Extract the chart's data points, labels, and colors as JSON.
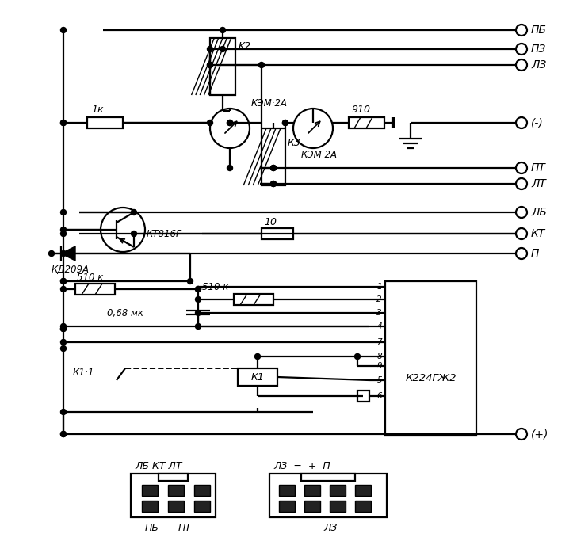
{
  "bg_color": "#ffffff",
  "labels": {
    "PB": "ПБ",
    "PZ": "ПЗ",
    "LZ": "ЛЗ",
    "minus": "(-)",
    "PT": "ПТ",
    "LT": "ЛТ",
    "LB": "ЛБ",
    "KT": "КТ",
    "P": "П",
    "plus": "(+)",
    "K2": "K2",
    "KEM2A_1": "КЭМ·2А",
    "KEM2A_2": "КЭМ·2А",
    "K3": "К3",
    "R910": "910",
    "R1K": "1к",
    "KT816G": "КТ816Г",
    "KD209A": "КД209А",
    "R510K_1": "510 к",
    "R510K_2": "510 к",
    "C068": "0,68 мк",
    "R10": "10",
    "K1": "К1",
    "K11": "К1:1",
    "K224GG2": "К224ГЖ2",
    "conn1_top": "ЛБ КТ ЛТ",
    "conn1_bot1": "ПБ",
    "conn1_bot2": "ПТ",
    "conn2_top": "ЛЗ  −  +  П",
    "conn2_bot": "ЛЗ"
  }
}
